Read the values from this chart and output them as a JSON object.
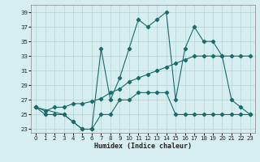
{
  "bg_color": "#d6eef0",
  "grid_color": "#b8d8d8",
  "line_color": "#1a6b6b",
  "xlabel": "Humidex (Indice chaleur)",
  "xlim": [
    -0.5,
    23.5
  ],
  "ylim": [
    22.5,
    40
  ],
  "yticks": [
    23,
    25,
    27,
    29,
    31,
    33,
    35,
    37,
    39
  ],
  "xticks": [
    0,
    1,
    2,
    3,
    4,
    5,
    6,
    7,
    8,
    9,
    10,
    11,
    12,
    13,
    14,
    15,
    16,
    17,
    18,
    19,
    20,
    21,
    22,
    23
  ],
  "line1_x": [
    0,
    1,
    2,
    3,
    4,
    5,
    6,
    7,
    8,
    9,
    10,
    11,
    12,
    13,
    14,
    15,
    16,
    17,
    18,
    19,
    20,
    21,
    22,
    23
  ],
  "line1_y": [
    26,
    25,
    25,
    25,
    24,
    23,
    23,
    25,
    25,
    27,
    27,
    28,
    28,
    28,
    28,
    25,
    25,
    25,
    25,
    25,
    25,
    25,
    25,
    25
  ],
  "line2_x": [
    0,
    3,
    4,
    5,
    6,
    7,
    8,
    9,
    10,
    11,
    12,
    13,
    14,
    15,
    16,
    17,
    18,
    19,
    20,
    21,
    22,
    23
  ],
  "line2_y": [
    26,
    25,
    24,
    23,
    23,
    34,
    27,
    30,
    34,
    38,
    37,
    38,
    39,
    27,
    34,
    37,
    35,
    35,
    33,
    27,
    26,
    25
  ],
  "line3_x": [
    0,
    1,
    2,
    3,
    4,
    5,
    6,
    7,
    8,
    9,
    10,
    11,
    12,
    13,
    14,
    15,
    16,
    17,
    18,
    19,
    20,
    21,
    22,
    23
  ],
  "line3_y": [
    26,
    25.5,
    26,
    26,
    26.5,
    26.5,
    26.8,
    27.2,
    28,
    28.5,
    29.5,
    30,
    30.5,
    31,
    31.5,
    32,
    32.5,
    33,
    33,
    33,
    33,
    33,
    33,
    33
  ]
}
